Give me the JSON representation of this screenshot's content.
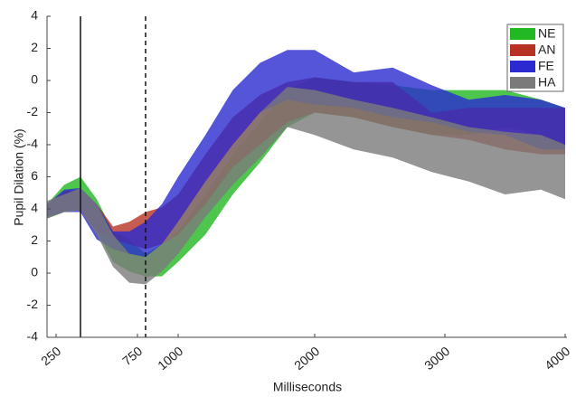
{
  "chart_data": {
    "type": "band",
    "xlabel": "Milliseconds",
    "ylabel": "Pupil Dilation (%)",
    "x": [
      200,
      300,
      400,
      500,
      600,
      700,
      800,
      900,
      1000,
      1200,
      1400,
      1600,
      1800,
      2000,
      2300,
      2600,
      2900,
      3200,
      3500,
      3800,
      4000
    ],
    "xlim": [
      200,
      4000
    ],
    "xticks": [
      250,
      750,
      1000,
      2000,
      3000,
      4000
    ],
    "ylim": [
      -4,
      16
    ],
    "yticks": [
      -4,
      -2,
      0,
      2,
      4,
      6,
      {
        "value": 8,
        "label": "-4"
      },
      {
        "value": 10,
        "label": "-2"
      },
      {
        "value": 12,
        "label": "0"
      },
      {
        "value": 14,
        "label": "2"
      },
      {
        "value": 16,
        "label": "4"
      }
    ],
    "vlines": [
      {
        "x": 400,
        "style": "solid"
      },
      {
        "x": 800,
        "style": "dashed"
      }
    ],
    "legend": "upper right",
    "series": [
      {
        "name": "NE",
        "color": "#22b822",
        "upper": [
          4.3,
          5.5,
          6.0,
          4.6,
          2.6,
          2.1,
          1.2,
          1.8,
          2.6,
          4.9,
          7.4,
          9.4,
          11.4,
          12.2,
          11.9,
          11.7,
          11.4,
          11.4,
          11.4,
          10.8,
          10.3
        ],
        "lower": [
          3.4,
          3.8,
          4.1,
          2.6,
          0.7,
          0.1,
          -0.2,
          -0.2,
          0.7,
          2.4,
          4.9,
          6.9,
          9.1,
          10.0,
          9.7,
          9.1,
          8.6,
          8.6,
          9.1,
          8.6,
          8.0
        ]
      },
      {
        "name": "AN",
        "color": "#b83224",
        "upper": [
          4.3,
          5.1,
          5.2,
          4.3,
          2.9,
          3.2,
          3.8,
          4.1,
          4.9,
          7.4,
          9.7,
          11.1,
          11.9,
          12.2,
          11.9,
          11.9,
          10.0,
          10.3,
          10.3,
          10.3,
          10.3
        ],
        "lower": [
          3.5,
          3.9,
          3.9,
          2.6,
          2.1,
          1.8,
          1.5,
          1.8,
          2.4,
          4.3,
          6.6,
          8.0,
          9.4,
          10.0,
          9.7,
          9.1,
          8.6,
          8.3,
          7.7,
          7.4,
          7.4
        ]
      },
      {
        "name": "FE",
        "color": "#2a2ad0",
        "upper": [
          4.3,
          5.2,
          5.3,
          4.3,
          2.6,
          2.6,
          3.2,
          4.3,
          6.0,
          8.6,
          11.4,
          13.1,
          13.9,
          13.9,
          12.5,
          12.8,
          11.7,
          10.8,
          11.1,
          10.8,
          10.3
        ],
        "lower": [
          3.5,
          3.8,
          3.8,
          2.1,
          1.5,
          1.2,
          1.0,
          1.8,
          3.2,
          5.7,
          8.0,
          10.0,
          10.8,
          10.5,
          10.3,
          9.7,
          9.4,
          8.8,
          8.6,
          7.7,
          7.7
        ]
      },
      {
        "name": "HA",
        "color": "#7a7a7a",
        "upper": [
          4.5,
          4.9,
          5.3,
          4.3,
          2.4,
          1.2,
          1.0,
          1.8,
          3.2,
          5.7,
          8.0,
          10.0,
          11.6,
          11.4,
          10.8,
          10.3,
          9.7,
          9.1,
          8.8,
          8.6,
          8.0
        ],
        "lower": [
          3.4,
          3.8,
          3.9,
          2.4,
          0.4,
          -0.6,
          -0.7,
          0.1,
          1.2,
          3.5,
          5.5,
          7.2,
          9.1,
          8.6,
          7.7,
          7.2,
          6.3,
          5.7,
          4.9,
          5.2,
          4.6
        ]
      }
    ]
  }
}
